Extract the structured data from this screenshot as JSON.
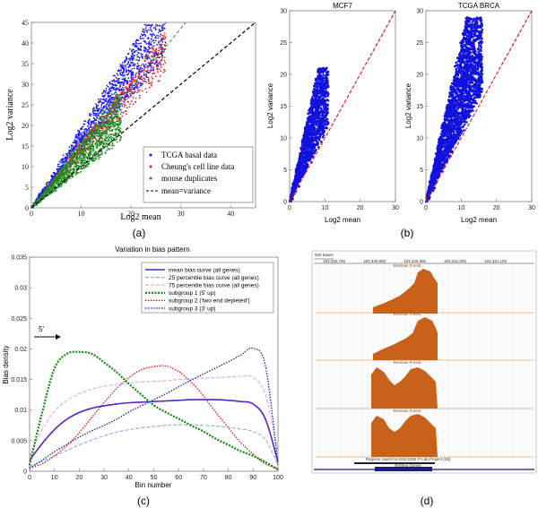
{
  "panels": {
    "a": {
      "label": "(a)",
      "xlabel": "Log2 mean",
      "ylabel": "Log2 variance",
      "xticks": [
        "0",
        "10",
        "20",
        "30",
        "40"
      ],
      "yticks": [
        "0",
        "5",
        "10",
        "15",
        "20",
        "25",
        "30",
        "35",
        "40",
        "45"
      ],
      "legend": [
        "TCGA basal data",
        "Cheung's cell line data",
        "mouse duplicates",
        "mean=variance"
      ],
      "colors": {
        "tcga": "#1a1aee",
        "cheung": "#ee2222",
        "mouse": "#1f8a1f",
        "identity": "#000000"
      }
    },
    "b": {
      "label": "(b)",
      "titles": [
        "MCF7",
        "TCGA BRCA"
      ],
      "xlabel": "Log2 mean",
      "ylabel": "Log2 variance",
      "xticks": [
        "0",
        "10",
        "20",
        "30"
      ],
      "yticks": [
        "0",
        "5",
        "10",
        "15",
        "20",
        "25",
        "30"
      ],
      "colors": {
        "points": "#1212dd",
        "line": "#dd1111"
      }
    },
    "c": {
      "label": "(c)",
      "title": "Variation in bias pattern",
      "arrow_text": "5'"
    },
    "d": {
      "label": "(d)",
      "scale_label": "500 bases",
      "coords": [
        "183,330,700",
        "183,330,800",
        "183,330,900",
        "183,331,000",
        "183,331,100"
      ],
      "track_label": "Restrain Forest",
      "region_label": "Regions Used For ENCODE P-Lab Project (28)",
      "gene_label": "RefSeq Genes"
    }
  },
  "chart_data": [
    {
      "type": "scatter",
      "panel": "a",
      "xlabel": "Log2 mean",
      "ylabel": "Log2 variance",
      "xlim": [
        0,
        45
      ],
      "ylim": [
        0,
        45
      ],
      "series": [
        {
          "name": "TCGA basal data",
          "slope_range": [
            1.35,
            1.95
          ],
          "x_range": [
            0,
            27
          ]
        },
        {
          "name": "Cheung's cell line data",
          "slope_range": [
            1.2,
            1.6
          ],
          "x_range": [
            0,
            27
          ]
        },
        {
          "name": "mouse duplicates",
          "slope_range": [
            0.9,
            1.6
          ],
          "x_range": [
            0,
            18
          ]
        }
      ],
      "fit_lines": [
        {
          "name": "TCGA basal fit",
          "x": [
            0,
            27
          ],
          "y": [
            0,
            45
          ]
        },
        {
          "name": "Cheung fit",
          "x": [
            0,
            27
          ],
          "y": [
            0,
            40
          ]
        },
        {
          "name": "mouse fit",
          "x": [
            0,
            31
          ],
          "y": [
            0,
            45
          ]
        },
        {
          "name": "mean=variance",
          "x": [
            0,
            45
          ],
          "y": [
            0,
            45
          ]
        }
      ]
    },
    {
      "type": "scatter",
      "panel": "b-left",
      "title": "MCF7",
      "xlabel": "Log2 mean",
      "ylabel": "Log2 variance",
      "xlim": [
        0,
        30
      ],
      "ylim": [
        0,
        30
      ],
      "points_x_range": [
        0,
        11
      ],
      "points_y_range": [
        0,
        21
      ],
      "line": {
        "x": [
          0,
          30
        ],
        "y": [
          0,
          30
        ]
      }
    },
    {
      "type": "scatter",
      "panel": "b-right",
      "title": "TCGA BRCA",
      "xlabel": "Log2 mean",
      "ylabel": "Log2 variance",
      "xlim": [
        0,
        30
      ],
      "ylim": [
        0,
        30
      ],
      "points_x_range": [
        0,
        16
      ],
      "points_y_range": [
        0,
        29
      ],
      "line": {
        "x": [
          0,
          30
        ],
        "y": [
          0,
          30
        ]
      }
    },
    {
      "type": "line",
      "panel": "c",
      "title": "Variation in bias pattern",
      "xlabel": "Bin number",
      "ylabel": "Bias density",
      "xlim": [
        0,
        100
      ],
      "ylim": [
        0,
        0.035
      ],
      "xticks": [
        "0",
        "10",
        "20",
        "30",
        "40",
        "50",
        "60",
        "70",
        "80",
        "90",
        "100"
      ],
      "yticks": [
        "0",
        "0.005",
        "0.01",
        "0.015",
        "0.02",
        "0.025",
        "0.03",
        "0.035"
      ],
      "x": [
        0,
        5,
        10,
        15,
        20,
        25,
        30,
        35,
        40,
        45,
        50,
        55,
        60,
        65,
        70,
        75,
        80,
        85,
        90,
        95,
        100
      ],
      "series": [
        {
          "name": "mean bias curve (all genes)",
          "color": "#5522cc",
          "dash": "",
          "width": 1.6,
          "values": [
            0.0018,
            0.0045,
            0.0068,
            0.0085,
            0.0096,
            0.0103,
            0.0107,
            0.011,
            0.0112,
            0.0113,
            0.0114,
            0.0115,
            0.0116,
            0.0117,
            0.0117,
            0.0117,
            0.0116,
            0.0114,
            0.011,
            0.0085,
            0.0015
          ]
        },
        {
          "name": "25 percentile bias curve (all genes)",
          "color": "#88aaee",
          "dash": "4,2",
          "width": 1.1,
          "values": [
            0.0008,
            0.0016,
            0.0025,
            0.0034,
            0.0043,
            0.0051,
            0.0058,
            0.0064,
            0.0068,
            0.0071,
            0.0073,
            0.0075,
            0.0076,
            0.0076,
            0.0075,
            0.0074,
            0.0072,
            0.0069,
            0.0065,
            0.0052,
            0.001
          ]
        },
        {
          "name": "75 percentile bias curve (all genes)",
          "color": "#e6a2e6",
          "dash": "4,2",
          "width": 1.1,
          "values": [
            0.0025,
            0.0068,
            0.0098,
            0.0116,
            0.0127,
            0.0134,
            0.0139,
            0.0142,
            0.0144,
            0.0146,
            0.0147,
            0.0148,
            0.015,
            0.0151,
            0.0152,
            0.0153,
            0.0154,
            0.0155,
            0.0154,
            0.0125,
            0.003
          ]
        },
        {
          "name": "subgroup 1 (5' up)",
          "color": "#118811",
          "dash": "2,1.5",
          "width": 2.2,
          "values": [
            0.001,
            0.0095,
            0.0168,
            0.0192,
            0.0195,
            0.0192,
            0.0178,
            0.0162,
            0.0143,
            0.0125,
            0.0108,
            0.0096,
            0.0086,
            0.0075,
            0.0065,
            0.0053,
            0.0043,
            0.0033,
            0.0025,
            0.0015,
            0.0003
          ]
        },
        {
          "name": "subgroup 2 ('two end depleted')",
          "color": "#dd1111",
          "dash": "1.5,1.5",
          "width": 1.3,
          "values": [
            0.0005,
            0.0012,
            0.0025,
            0.0042,
            0.0063,
            0.0088,
            0.0112,
            0.0135,
            0.0153,
            0.0166,
            0.0171,
            0.0172,
            0.0163,
            0.0146,
            0.0123,
            0.0096,
            0.0071,
            0.0047,
            0.0028,
            0.0012,
            0.0004
          ]
        },
        {
          "name": "subgroup 3 (3' up)",
          "color": "#1122aa",
          "dash": "1.5,1.5",
          "width": 1.3,
          "values": [
            0.0005,
            0.0018,
            0.0032,
            0.0044,
            0.0056,
            0.0066,
            0.0075,
            0.0085,
            0.0097,
            0.0107,
            0.0117,
            0.0127,
            0.0138,
            0.0149,
            0.0159,
            0.0169,
            0.0179,
            0.019,
            0.0201,
            0.0172,
            0.001
          ]
        }
      ]
    }
  ]
}
